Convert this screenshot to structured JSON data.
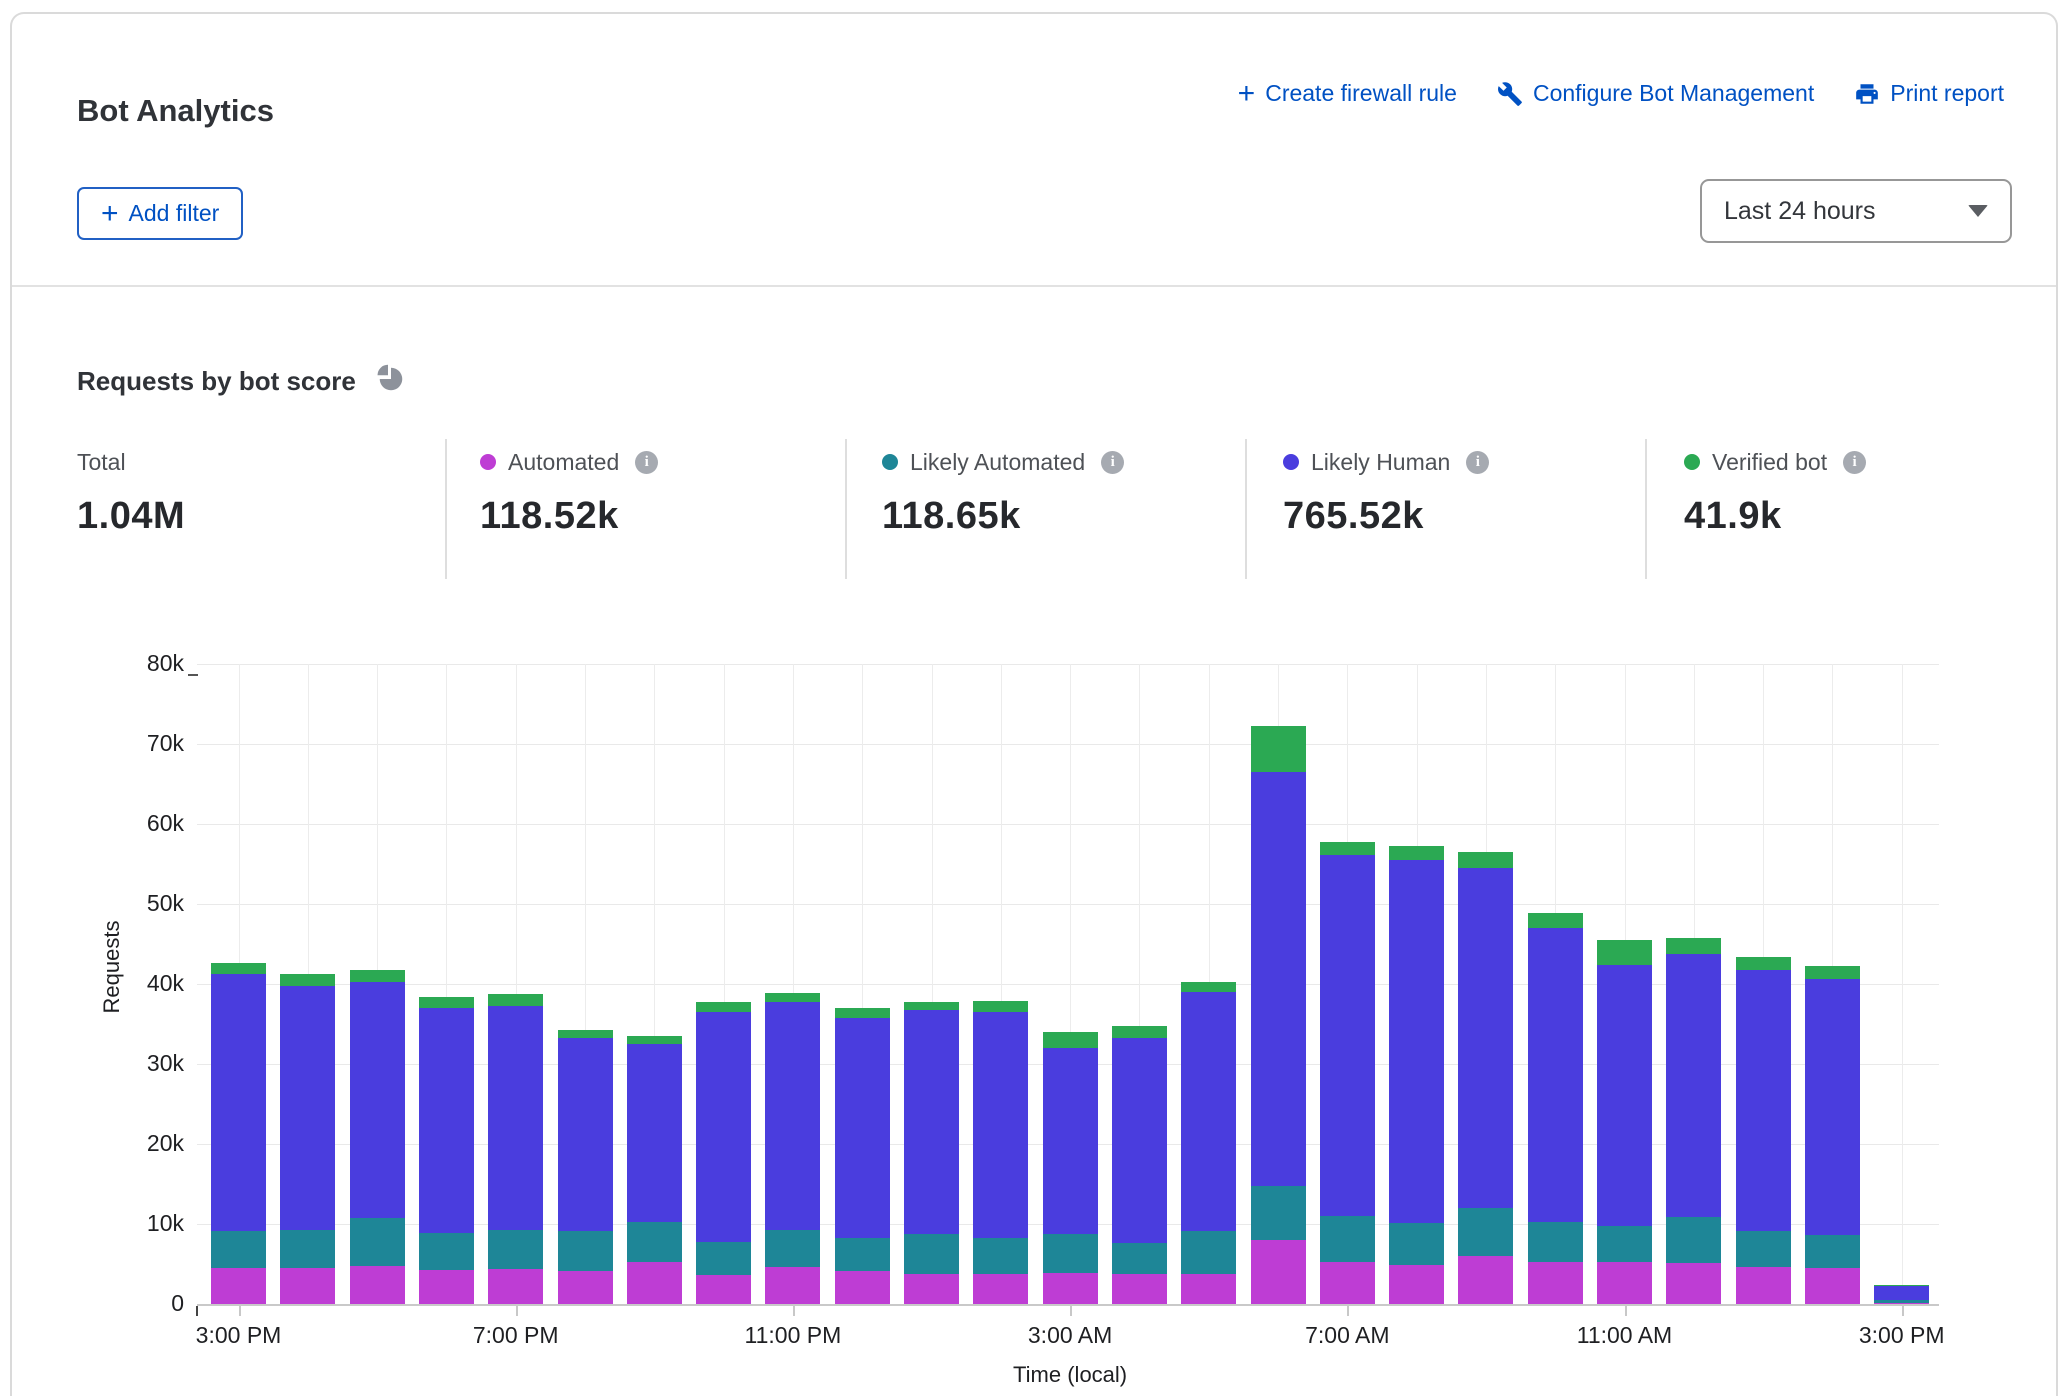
{
  "header": {
    "title": "Bot Analytics",
    "actions": [
      {
        "label": "Create firewall rule",
        "icon": "plus-icon"
      },
      {
        "label": "Configure Bot Management",
        "icon": "wrench-icon"
      },
      {
        "label": "Print report",
        "icon": "printer-icon"
      }
    ],
    "add_filter_label": "Add filter",
    "time_range_selected": "Last 24 hours"
  },
  "section": {
    "title": "Requests by bot score"
  },
  "stats": {
    "total": {
      "label": "Total",
      "value": "1.04M"
    },
    "series": [
      {
        "label": "Automated",
        "value": "118.52k",
        "color": "#BE3DD4",
        "info_icon": "info-icon"
      },
      {
        "label": "Likely Automated",
        "value": "118.65k",
        "color": "#1E8697",
        "info_icon": "info-icon"
      },
      {
        "label": "Likely Human",
        "value": "765.52k",
        "color": "#4A3DDE",
        "info_icon": "info-icon"
      },
      {
        "label": "Verified bot",
        "value": "41.9k",
        "color": "#2BA953",
        "info_icon": "info-icon"
      }
    ]
  },
  "chart_data": {
    "type": "bar",
    "subtype": "stacked",
    "title": "Requests by bot score",
    "xlabel": "Time (local)",
    "ylabel": "Requests",
    "ylim": [
      0,
      80000
    ],
    "grid": true,
    "y_ticks": [
      "0",
      "10k",
      "20k",
      "30k",
      "40k",
      "50k",
      "60k",
      "70k",
      "80k"
    ],
    "x_tick_labels": [
      "3:00 PM",
      "7:00 PM",
      "11:00 PM",
      "3:00 AM",
      "7:00 AM",
      "11:00 AM",
      "3:00 PM"
    ],
    "x_tick_indices": [
      0,
      4,
      8,
      12,
      16,
      20,
      24
    ],
    "categories": [
      "3:00 PM",
      "4:00 PM",
      "5:00 PM",
      "6:00 PM",
      "7:00 PM",
      "8:00 PM",
      "9:00 PM",
      "10:00 PM",
      "11:00 PM",
      "12:00 AM",
      "1:00 AM",
      "2:00 AM",
      "3:00 AM",
      "4:00 AM",
      "5:00 AM",
      "6:00 AM",
      "7:00 AM",
      "8:00 AM",
      "9:00 AM",
      "10:00 AM",
      "11:00 AM",
      "12:00 PM",
      "1:00 PM",
      "2:00 PM",
      "3:00 PM"
    ],
    "series": [
      {
        "name": "Automated",
        "color": "#BE3DD4",
        "values": [
          4500,
          4500,
          4800,
          4200,
          4400,
          4100,
          5200,
          3600,
          4600,
          4100,
          3700,
          3800,
          3900,
          3700,
          3800,
          8000,
          5200,
          4900,
          6000,
          5300,
          5200,
          5100,
          4600,
          4500,
          150
        ]
      },
      {
        "name": "Likely Automated",
        "color": "#1E8697",
        "values": [
          4600,
          4800,
          6000,
          4700,
          4800,
          5000,
          5100,
          4100,
          4700,
          4200,
          5100,
          4400,
          4900,
          3900,
          5300,
          6800,
          5800,
          5200,
          6000,
          5000,
          4600,
          5800,
          4500,
          4100,
          400
        ]
      },
      {
        "name": "Likely Human",
        "color": "#4A3DDE",
        "values": [
          32200,
          30400,
          29400,
          28100,
          28100,
          24100,
          22200,
          28800,
          28400,
          27500,
          27900,
          28300,
          23200,
          25600,
          29900,
          51700,
          45100,
          45400,
          42500,
          36700,
          32600,
          32900,
          32700,
          32000,
          1700
        ]
      },
      {
        "name": "Verified bot",
        "color": "#2BA953",
        "values": [
          1300,
          1500,
          1500,
          1400,
          1400,
          1100,
          1000,
          1200,
          1200,
          1200,
          1100,
          1400,
          2000,
          1500,
          1300,
          5800,
          1700,
          1800,
          2000,
          1900,
          3100,
          1900,
          1600,
          1700,
          100
        ]
      }
    ],
    "legend_position": "top"
  }
}
